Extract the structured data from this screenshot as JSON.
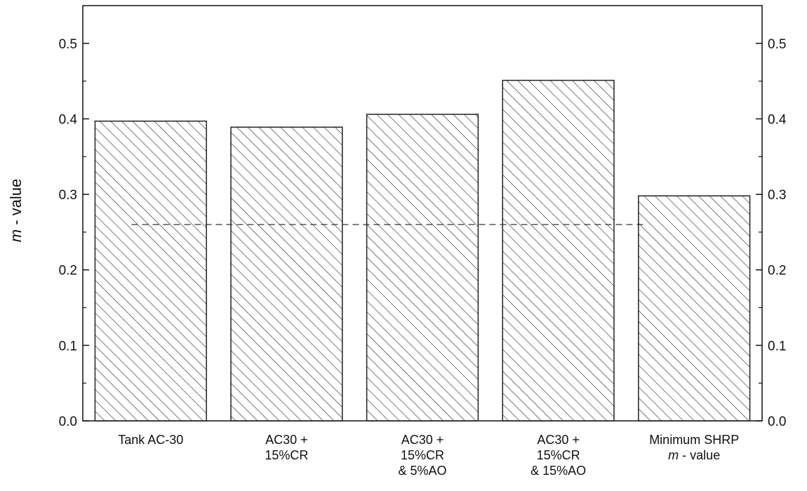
{
  "chart_data": {
    "type": "bar",
    "title": "",
    "xlabel": "",
    "ylabel": {
      "italic": "m",
      "rest": " - value"
    },
    "ylim": [
      0.0,
      0.55
    ],
    "yticks": [
      "0.0",
      "0.1",
      "0.2",
      "0.3",
      "0.4",
      "0.5"
    ],
    "ytick_values": [
      0.0,
      0.1,
      0.2,
      0.3,
      0.4,
      0.5
    ],
    "right_axis": true,
    "grid": false,
    "categories": [
      {
        "lines": [
          "Tank AC-30"
        ]
      },
      {
        "lines": [
          "AC30 +",
          "15%CR"
        ]
      },
      {
        "lines": [
          "AC30 +",
          "15%CR",
          "& 5%AO"
        ]
      },
      {
        "lines": [
          "AC30 +",
          "15%CR",
          "& 15%AO"
        ]
      },
      {
        "lines": [
          "Minimum SHRP",
          "m - value"
        ],
        "italic_prefix_line": 1,
        "italic_prefix": "m"
      }
    ],
    "values": [
      0.397,
      0.389,
      0.406,
      0.451,
      0.298
    ],
    "reference_line": {
      "value": 0.26,
      "style": "dashed"
    },
    "bar_fill": "hatched",
    "colors": {
      "bar_stroke": "#222222",
      "hatch": "#333333",
      "axis": "#111111",
      "reference_line": "#333333"
    }
  }
}
